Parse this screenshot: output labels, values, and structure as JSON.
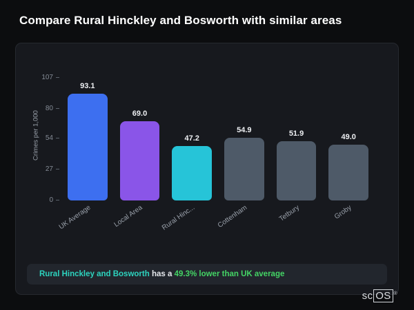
{
  "page": {
    "title": "Compare Rural Hinckley and Bosworth with similar areas"
  },
  "chart_data": {
    "type": "bar",
    "categories": [
      "UK Average",
      "Local Area",
      "Rural Hinc...",
      "Cottenham",
      "Tetbury",
      "Groby"
    ],
    "values": [
      93.1,
      69.0,
      47.2,
      54.9,
      51.9,
      49.0
    ],
    "value_labels": [
      "93.1",
      "69.0",
      "47.2",
      "54.9",
      "51.9",
      "49.0"
    ],
    "bar_colors": [
      "#3d6ff0",
      "#8a55e8",
      "#26c4d8",
      "#4e5a68",
      "#4e5a68",
      "#4e5a68"
    ],
    "title": "",
    "xlabel": "",
    "ylabel": "Crimes per 1,000",
    "yticks": [
      0,
      27,
      54,
      80,
      107
    ],
    "ylim": [
      0,
      107
    ],
    "grid": false,
    "legend": false
  },
  "footer_note": {
    "highlight": "Rural Hinckley and Bosworth",
    "middle": " has a ",
    "stat": "49.3% lower than UK average"
  },
  "branding": {
    "prefix": "sc",
    "suffix": "OS",
    "mark": "®"
  }
}
